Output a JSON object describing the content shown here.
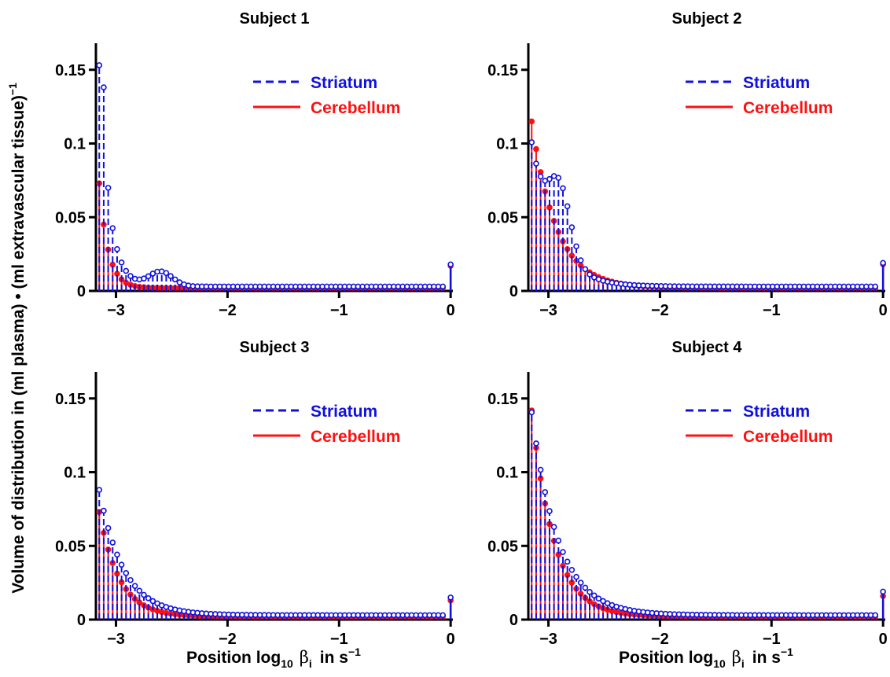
{
  "figure": {
    "ylabel_main": "Volume of distribution in (ml plasma) • (ml extravascular tissue)",
    "ylabel_sup": "−1",
    "xlabel_main": "Position log",
    "xlabel_sub10": "10",
    "xlabel_beta": "β",
    "xlabel_subi": "i",
    "xlabel_units": "in s",
    "xlabel_sup": "−1"
  },
  "colors": {
    "striatum": "#1010e0",
    "cerebellum": "#ff1010"
  },
  "chart_data": [
    {
      "type": "stem",
      "title": "Subject 1",
      "xlim": [
        -3.18,
        0.02
      ],
      "ylim": [
        0,
        0.16
      ],
      "xticks": [
        {
          "v": -3,
          "label": "−3"
        },
        {
          "v": -2,
          "label": "−2"
        },
        {
          "v": -1,
          "label": "−1"
        },
        {
          "v": 0,
          "label": "0"
        }
      ],
      "yticks": [
        {
          "v": 0,
          "label": "0"
        },
        {
          "v": 0.05,
          "label": "0.05"
        },
        {
          "v": 0.1,
          "label": "0.1"
        },
        {
          "v": 0.15,
          "label": "0.15"
        }
      ],
      "legend": {
        "position": "top-right"
      },
      "series": [
        {
          "name": "Striatum",
          "style": "dashed",
          "marker": "open-circle",
          "peak_x": -3.15,
          "peak": 0.15,
          "decay": 0.09,
          "floor": 0.003,
          "bumps": [
            [
              -3.1,
              0.05,
              0.02
            ],
            [
              -2.6,
              0.01,
              0.15
            ]
          ],
          "end_value": 0.018
        },
        {
          "name": "Cerebellum",
          "style": "solid",
          "marker": "filled-circle",
          "peak_x": -3.15,
          "peak": 0.071,
          "decay": 0.08,
          "floor": 0.002,
          "bumps": [],
          "end_value": 0.017
        }
      ]
    },
    {
      "type": "stem",
      "title": "Subject 2",
      "xlim": [
        -3.18,
        0.02
      ],
      "ylim": [
        0,
        0.16
      ],
      "xticks": [
        {
          "v": -3,
          "label": "−3"
        },
        {
          "v": -2,
          "label": "−2"
        },
        {
          "v": -1,
          "label": "−1"
        },
        {
          "v": 0,
          "label": "0"
        }
      ],
      "yticks": [
        {
          "v": 0,
          "label": "0"
        },
        {
          "v": 0.05,
          "label": "0.05"
        },
        {
          "v": 0.1,
          "label": "0.1"
        },
        {
          "v": 0.15,
          "label": "0.15"
        }
      ],
      "legend": {
        "position": "top-right"
      },
      "series": [
        {
          "name": "Striatum",
          "style": "dashed",
          "marker": "open-circle",
          "peak_x": -3.15,
          "peak": 0.096,
          "decay": 0.2,
          "floor": 0.003,
          "bumps": [
            [
              -2.9,
              0.045,
              0.14
            ]
          ],
          "end_value": 0.019
        },
        {
          "name": "Cerebellum",
          "style": "solid",
          "marker": "filled-circle",
          "peak_x": -3.15,
          "peak": 0.113,
          "decay": 0.22,
          "floor": 0.002,
          "bumps": [],
          "end_value": 0.018
        }
      ]
    },
    {
      "type": "stem",
      "title": "Subject 3",
      "xlim": [
        -3.18,
        0.02
      ],
      "ylim": [
        0,
        0.16
      ],
      "xticks": [
        {
          "v": -3,
          "label": "−3"
        },
        {
          "v": -2,
          "label": "−2"
        },
        {
          "v": -1,
          "label": "−1"
        },
        {
          "v": 0,
          "label": "0"
        }
      ],
      "yticks": [
        {
          "v": 0,
          "label": "0"
        },
        {
          "v": 0.05,
          "label": "0.05"
        },
        {
          "v": 0.1,
          "label": "0.1"
        },
        {
          "v": 0.15,
          "label": "0.15"
        }
      ],
      "legend": {
        "position": "top-right"
      },
      "series": [
        {
          "name": "Striatum",
          "style": "dashed",
          "marker": "open-circle",
          "peak_x": -3.15,
          "peak": 0.085,
          "decay": 0.22,
          "floor": 0.003,
          "bumps": [],
          "end_value": 0.015
        },
        {
          "name": "Cerebellum",
          "style": "solid",
          "marker": "filled-circle",
          "peak_x": -3.15,
          "peak": 0.071,
          "decay": 0.18,
          "floor": 0.002,
          "bumps": [],
          "end_value": 0.013
        }
      ]
    },
    {
      "type": "stem",
      "title": "Subject 4",
      "xlim": [
        -3.18,
        0.02
      ],
      "ylim": [
        0,
        0.16
      ],
      "xticks": [
        {
          "v": -3,
          "label": "−3"
        },
        {
          "v": -2,
          "label": "−2"
        },
        {
          "v": -1,
          "label": "−1"
        },
        {
          "v": 0,
          "label": "0"
        }
      ],
      "yticks": [
        {
          "v": 0,
          "label": "0"
        },
        {
          "v": 0.05,
          "label": "0.05"
        },
        {
          "v": 0.1,
          "label": "0.1"
        },
        {
          "v": 0.15,
          "label": "0.15"
        }
      ],
      "legend": {
        "position": "top-right"
      },
      "series": [
        {
          "name": "Striatum",
          "style": "dashed",
          "marker": "open-circle",
          "peak_x": -3.14,
          "peak": 0.132,
          "decay": 0.24,
          "floor": 0.003,
          "bumps": [],
          "end_value": 0.019
        },
        {
          "name": "Cerebellum",
          "style": "solid",
          "marker": "filled-circle",
          "peak_x": -3.14,
          "peak": 0.133,
          "decay": 0.2,
          "floor": 0.002,
          "bumps": [],
          "end_value": 0.016
        }
      ]
    }
  ]
}
